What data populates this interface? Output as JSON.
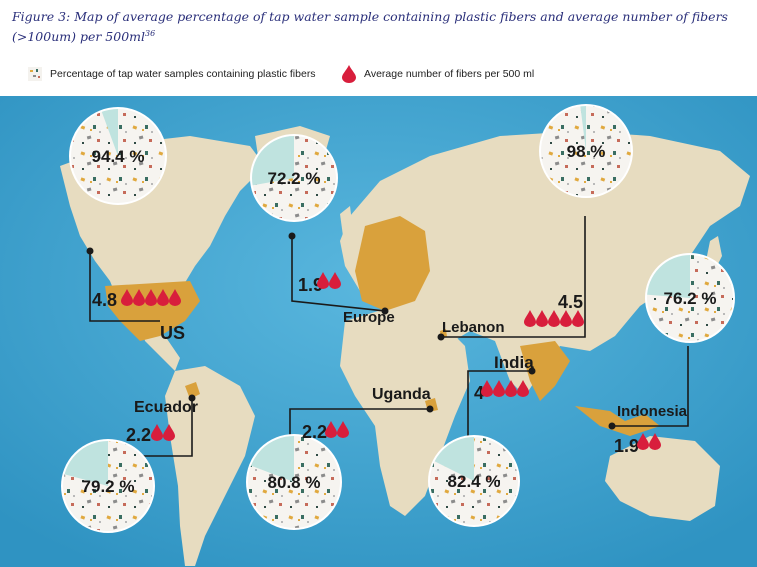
{
  "caption": "Figure 3: Map of average percentage of tap water sample containing plastic fibers and average number of fibers (>100um) per 500ml",
  "caption_ref": "36",
  "legend": {
    "percentage_label": "Percentage of tap water samples containing plastic fibers",
    "fibers_label": "Average number of fibers per 500 ml"
  },
  "colors": {
    "ocean": "#3fa7d2",
    "land": "#e7dcc0",
    "highlight": "#d9a13c",
    "drop": "#d81e3c",
    "pie_empty": "#bfe3df",
    "line": "#1a1a1a"
  },
  "countries": [
    {
      "name": "US",
      "percentage": "94.4 %",
      "fibers": "4.8",
      "drops": 5
    },
    {
      "name": "Europe",
      "percentage": "72.2 %",
      "fibers": "1.9",
      "drops": 2
    },
    {
      "name": "Lebanon",
      "percentage": "98 %",
      "fibers": "4.5",
      "drops": 5
    },
    {
      "name": "Indonesia",
      "percentage": "76.2 %",
      "fibers": "1.9",
      "drops": 2
    },
    {
      "name": "India",
      "percentage": "82.4 %",
      "fibers": "4",
      "drops": 4
    },
    {
      "name": "Uganda",
      "percentage": "80.8 %",
      "fibers": "2.2",
      "drops": 2
    },
    {
      "name": "Ecuador",
      "percentage": "79.2 %",
      "fibers": "2.2",
      "drops": 2
    }
  ]
}
